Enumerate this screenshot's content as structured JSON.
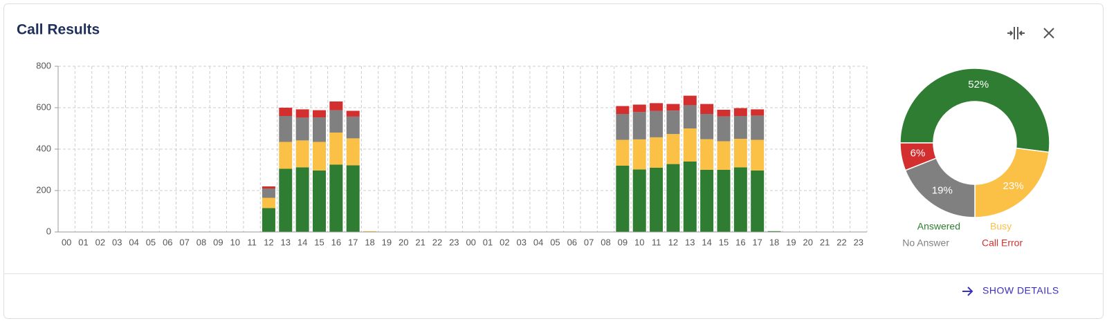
{
  "card": {
    "title": "Call Results",
    "action": "SHOW DETAILS"
  },
  "chart_data": [
    {
      "type": "bar",
      "stacked": true,
      "categories": [
        "00",
        "01",
        "02",
        "03",
        "04",
        "05",
        "06",
        "07",
        "08",
        "09",
        "10",
        "11",
        "12",
        "13",
        "14",
        "15",
        "16",
        "17",
        "18",
        "19",
        "20",
        "21",
        "22",
        "23",
        "00",
        "01",
        "02",
        "03",
        "04",
        "05",
        "06",
        "07",
        "08",
        "09",
        "10",
        "11",
        "12",
        "13",
        "14",
        "15",
        "16",
        "17",
        "18",
        "19",
        "20",
        "21",
        "22",
        "23"
      ],
      "series": [
        {
          "name": "Answered",
          "color": "#2e7d32",
          "values": [
            0,
            0,
            0,
            0,
            0,
            0,
            0,
            0,
            0,
            0,
            0,
            0,
            115,
            305,
            312,
            297,
            325,
            322,
            0,
            0,
            0,
            0,
            0,
            0,
            0,
            0,
            0,
            0,
            0,
            0,
            0,
            0,
            0,
            320,
            302,
            310,
            328,
            340,
            300,
            300,
            312,
            297,
            4,
            0,
            0,
            0,
            0,
            0
          ]
        },
        {
          "name": "Busy",
          "color": "#fbc046",
          "values": [
            0,
            0,
            0,
            0,
            0,
            0,
            0,
            0,
            0,
            0,
            0,
            0,
            50,
            130,
            130,
            138,
            155,
            130,
            4,
            0,
            0,
            0,
            0,
            0,
            0,
            0,
            0,
            0,
            0,
            0,
            0,
            0,
            0,
            125,
            145,
            147,
            145,
            160,
            148,
            138,
            138,
            148,
            0,
            0,
            0,
            0,
            0,
            0
          ]
        },
        {
          "name": "No Answer",
          "color": "#808080",
          "values": [
            0,
            0,
            0,
            0,
            0,
            0,
            0,
            0,
            0,
            0,
            0,
            0,
            45,
            125,
            110,
            118,
            108,
            105,
            0,
            0,
            0,
            0,
            0,
            0,
            0,
            0,
            0,
            0,
            0,
            0,
            0,
            0,
            0,
            125,
            132,
            127,
            113,
            112,
            122,
            120,
            110,
            117,
            0,
            0,
            0,
            0,
            0,
            0
          ]
        },
        {
          "name": "Call Error",
          "color": "#d32f2f",
          "values": [
            0,
            0,
            0,
            0,
            0,
            0,
            0,
            0,
            0,
            0,
            0,
            0,
            10,
            40,
            40,
            35,
            42,
            28,
            0,
            0,
            0,
            0,
            0,
            0,
            0,
            0,
            0,
            0,
            0,
            0,
            0,
            0,
            0,
            38,
            36,
            38,
            32,
            46,
            48,
            32,
            38,
            30,
            0,
            0,
            0,
            0,
            0,
            0
          ]
        }
      ],
      "ylim": [
        0,
        800
      ],
      "yticks": [
        0,
        200,
        400,
        600,
        800
      ],
      "grid": true
    },
    {
      "type": "pie",
      "donut": true,
      "values": [
        52,
        23,
        19,
        6
      ],
      "value_labels": [
        "52%",
        "23%",
        "19%",
        "6%"
      ],
      "colors": [
        "#2e7d32",
        "#fbc046",
        "#808080",
        "#d32f2f"
      ]
    }
  ]
}
